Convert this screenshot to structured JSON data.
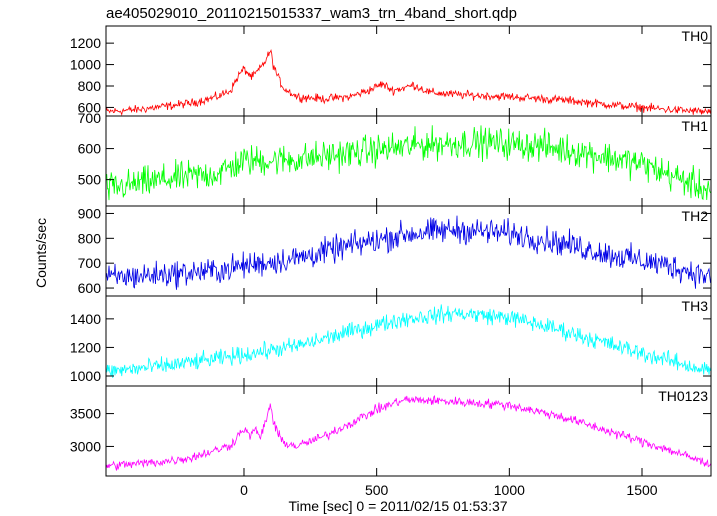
{
  "chart_data": {
    "type": "line",
    "title": "ae405029010_20110215015337_wam3_trn_4band_short.qdp",
    "xlabel": "Time [sec] 0 = 2011/02/15 01:53:37",
    "ylabel": "Counts/sec",
    "xlim": [
      -520,
      1760
    ],
    "x_ticks": [
      0,
      500,
      1000,
      1500
    ],
    "panels": [
      {
        "name": "TH0",
        "color": "#ff0000",
        "ylim": [
          520,
          1360
        ],
        "y_ticks": [
          600,
          800,
          1000,
          1200
        ],
        "top_label": "700",
        "x": [
          -520,
          -400,
          -300,
          -200,
          -100,
          -50,
          -20,
          0,
          30,
          60,
          80,
          100,
          110,
          130,
          150,
          200,
          300,
          400,
          480,
          520,
          560,
          600,
          640,
          700,
          800,
          1000,
          1200,
          1400,
          1600,
          1740
        ],
        "values": [
          560,
          580,
          610,
          640,
          700,
          760,
          900,
          960,
          880,
          960,
          1030,
          1130,
          1000,
          870,
          780,
          700,
          680,
          700,
          770,
          820,
          760,
          780,
          810,
          740,
          720,
          700,
          670,
          620,
          580,
          560
        ],
        "noise": 30
      },
      {
        "name": "TH1",
        "color": "#00ff00",
        "ylim": [
          415,
          705
        ],
        "y_ticks": [
          500,
          600
        ],
        "top_label": "",
        "x": [
          -520,
          -300,
          -100,
          0,
          200,
          500,
          700,
          900,
          1100,
          1300,
          1500,
          1740
        ],
        "values": [
          470,
          500,
          520,
          560,
          565,
          595,
          615,
          620,
          610,
          585,
          550,
          470
        ],
        "noise": 38
      },
      {
        "name": "TH2",
        "color": "#0000e6",
        "ylim": [
          568,
          930
        ],
        "y_ticks": [
          600,
          700,
          800,
          900
        ],
        "top_label": "",
        "x": [
          -520,
          -300,
          -100,
          0,
          200,
          400,
          600,
          800,
          1000,
          1200,
          1400,
          1600,
          1740
        ],
        "values": [
          640,
          655,
          670,
          690,
          720,
          770,
          815,
          835,
          820,
          780,
          730,
          690,
          650
        ],
        "noise": 40
      },
      {
        "name": "TH3",
        "color": "#00ffff",
        "ylim": [
          930,
          1560
        ],
        "y_ticks": [
          1000,
          1200,
          1400
        ],
        "top_label": "",
        "x": [
          -520,
          -300,
          -100,
          0,
          200,
          400,
          600,
          800,
          1000,
          1200,
          1400,
          1600,
          1740
        ],
        "values": [
          1030,
          1070,
          1120,
          1150,
          1210,
          1310,
          1400,
          1440,
          1410,
          1320,
          1210,
          1110,
          1040
        ],
        "noise": 45
      },
      {
        "name": "TH0123",
        "color": "#ff00ff",
        "ylim": [
          2550,
          3920
        ],
        "y_ticks": [
          3000,
          3500
        ],
        "top_label": "",
        "x": [
          -520,
          -300,
          -200,
          -100,
          -50,
          0,
          20,
          40,
          60,
          80,
          100,
          110,
          130,
          150,
          200,
          300,
          400,
          500,
          600,
          700,
          800,
          1000,
          1200,
          1400,
          1600,
          1740
        ],
        "values": [
          2700,
          2770,
          2830,
          2950,
          3020,
          3280,
          3150,
          3270,
          3120,
          3360,
          3650,
          3380,
          3170,
          3060,
          3000,
          3150,
          3350,
          3560,
          3710,
          3700,
          3680,
          3630,
          3450,
          3200,
          2950,
          2750
        ],
        "noise": 55
      }
    ]
  }
}
